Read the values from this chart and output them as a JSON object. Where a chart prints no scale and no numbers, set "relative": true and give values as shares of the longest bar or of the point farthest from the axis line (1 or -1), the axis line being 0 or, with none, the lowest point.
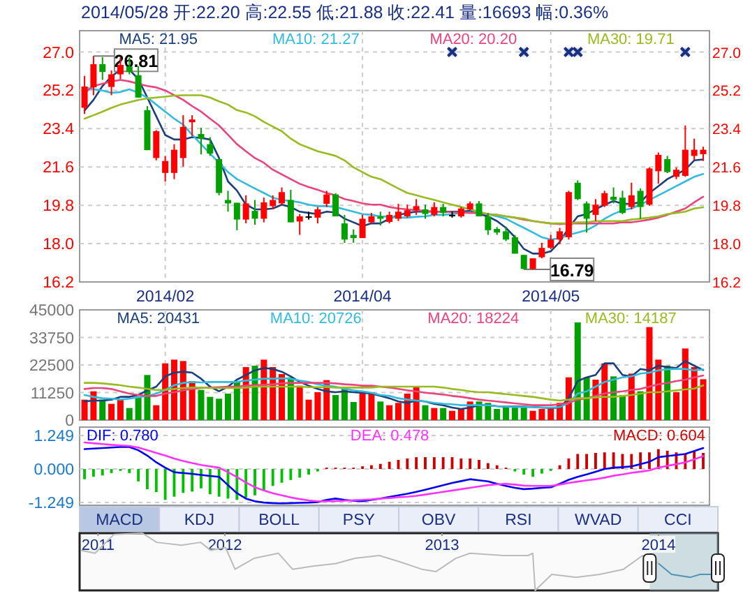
{
  "chart_data": [
    {
      "type": "candlestick",
      "title": "2014/05/28 开:22.20 高:22.55 低:21.88 收:22.41 量:16693 幅:0.36%",
      "categories": [
        null,
        null,
        null,
        null,
        null,
        null,
        null,
        null,
        null,
        "2014/02",
        null,
        null,
        null,
        null,
        null,
        null,
        null,
        null,
        null,
        null,
        null,
        null,
        null,
        null,
        null,
        null,
        null,
        null,
        null,
        null,
        null,
        "2014/04",
        null,
        null,
        null,
        null,
        null,
        null,
        null,
        null,
        null,
        null,
        null,
        null,
        null,
        null,
        null,
        null,
        null,
        null,
        null,
        null,
        "2014/05",
        null,
        null,
        null,
        null,
        null,
        null,
        null,
        null,
        null,
        null,
        null,
        null,
        null,
        null,
        null,
        null,
        null
      ],
      "ohlc": [
        [
          24.38,
          25.88,
          24.09,
          25.38
        ],
        [
          25.34,
          26.81,
          24.97,
          26.43
        ],
        [
          26.43,
          26.76,
          25.69,
          26.06
        ],
        [
          25.36,
          26.13,
          24.97,
          25.95
        ],
        [
          25.95,
          26.72,
          25.73,
          26.39
        ],
        [
          26.32,
          26.74,
          25.95,
          26.06
        ],
        [
          25.91,
          26.34,
          24.86,
          24.86
        ],
        [
          24.27,
          24.46,
          22.39,
          22.39
        ],
        [
          22.02,
          23.33,
          21.91,
          23.28
        ],
        [
          21.32,
          22.12,
          20.92,
          21.88
        ],
        [
          21.32,
          22.67,
          21.03,
          22.41
        ],
        [
          22.02,
          24.03,
          21.62,
          23.48
        ],
        [
          23.7,
          24.03,
          23.06,
          23.83
        ],
        [
          23.15,
          23.44,
          22.19,
          22.93
        ],
        [
          22.67,
          23.0,
          22.12,
          22.23
        ],
        [
          21.97,
          21.97,
          20.27,
          20.38
        ],
        [
          20.05,
          20.48,
          19.5,
          19.89
        ],
        [
          19.92,
          19.92,
          18.63,
          19.13
        ],
        [
          19.13,
          20.27,
          18.95,
          19.89
        ],
        [
          19.54,
          20.05,
          18.89,
          19.17
        ],
        [
          19.17,
          20.16,
          19.0,
          19.94
        ],
        [
          19.76,
          20.27,
          19.61,
          20.05
        ],
        [
          19.89,
          20.64,
          19.83,
          20.42
        ],
        [
          20.05,
          20.53,
          19.0,
          19.0
        ],
        [
          19.04,
          19.39,
          18.41,
          19.28
        ],
        [
          19.28,
          19.5,
          19.13,
          19.28
        ],
        [
          19.22,
          19.72,
          18.95,
          19.61
        ],
        [
          19.87,
          20.48,
          19.72,
          20.31
        ],
        [
          20.31,
          20.37,
          19.28,
          19.28
        ],
        [
          18.95,
          19.35,
          18.04,
          18.19
        ],
        [
          18.41,
          18.67,
          18.04,
          18.26
        ],
        [
          18.26,
          19.35,
          18.26,
          19.17
        ],
        [
          19.0,
          19.44,
          18.95,
          19.28
        ],
        [
          19.28,
          19.5,
          18.85,
          19.17
        ],
        [
          19.02,
          19.5,
          18.95,
          19.35
        ],
        [
          19.17,
          19.87,
          19.06,
          19.5
        ],
        [
          19.28,
          19.83,
          19.22,
          19.57
        ],
        [
          19.57,
          20.09,
          19.35,
          19.76
        ],
        [
          19.61,
          19.83,
          19.17,
          19.39
        ],
        [
          19.35,
          19.94,
          19.28,
          19.72
        ],
        [
          19.72,
          19.87,
          19.28,
          19.44
        ],
        [
          19.35,
          19.5,
          19.22,
          19.35
        ],
        [
          19.28,
          19.72,
          19.22,
          19.65
        ],
        [
          19.61,
          19.98,
          19.57,
          19.89
        ],
        [
          19.89,
          20.0,
          19.28,
          19.28
        ],
        [
          19.28,
          19.44,
          18.41,
          18.63
        ],
        [
          18.69,
          18.78,
          18.41,
          18.52
        ],
        [
          18.58,
          18.78,
          18.12,
          18.19
        ],
        [
          18.3,
          18.41,
          17.53,
          17.53
        ],
        [
          17.47,
          17.47,
          16.79,
          16.81
        ],
        [
          16.81,
          17.31,
          16.8,
          17.31
        ],
        [
          17.36,
          18.04,
          17.31,
          17.8
        ],
        [
          17.8,
          18.41,
          17.75,
          18.19
        ],
        [
          18.19,
          18.74,
          17.97,
          18.58
        ],
        [
          18.3,
          20.48,
          18.19,
          20.42
        ],
        [
          20.86,
          20.97,
          20.05,
          20.09
        ],
        [
          19.89,
          19.98,
          18.52,
          19.17
        ],
        [
          19.35,
          20.09,
          19.06,
          19.83
        ],
        [
          19.78,
          20.48,
          19.72,
          20.37
        ],
        [
          20.2,
          20.64,
          19.89,
          20.05
        ],
        [
          20.16,
          20.48,
          19.39,
          19.44
        ],
        [
          19.72,
          20.86,
          19.61,
          20.27
        ],
        [
          20.48,
          20.59,
          19.17,
          19.72
        ],
        [
          19.83,
          21.58,
          19.78,
          21.53
        ],
        [
          21.4,
          22.28,
          20.81,
          22.17
        ],
        [
          21.97,
          22.12,
          21.31,
          21.36
        ],
        [
          21.14,
          21.58,
          21.03,
          21.47
        ],
        [
          21.18,
          23.55,
          21.14,
          22.41
        ],
        [
          22.12,
          22.93,
          21.91,
          22.41
        ],
        [
          22.2,
          22.55,
          21.88,
          22.41
        ]
      ],
      "colors": [
        "#ff0000",
        "#ff0000",
        "#00a000",
        "#ff0000",
        "#ff0000",
        "#00a000",
        "#00a000",
        "#00a000",
        "#ff0000",
        "#ff0000",
        "#ff0000",
        "#ff0000",
        "#ff0000",
        "#00a000",
        "#00a000",
        "#00a000",
        "#00a000",
        "#00a000",
        "#ff0000",
        "#00a000",
        "#ff0000",
        "#ff0000",
        "#ff0000",
        "#00a000",
        "#ff0000",
        "#000000",
        "#ff0000",
        "#ff0000",
        "#00a000",
        "#00a000",
        "#00a000",
        "#ff0000",
        "#ff0000",
        "#00a000",
        "#ff0000",
        "#ff0000",
        "#ff0000",
        "#ff0000",
        "#00a000",
        "#ff0000",
        "#00a000",
        "#000000",
        "#ff0000",
        "#ff0000",
        "#00a000",
        "#00a000",
        "#00a000",
        "#00a000",
        "#00a000",
        "#00a000",
        "#ff0000",
        "#ff0000",
        "#ff0000",
        "#ff0000",
        "#ff0000",
        "#00a000",
        "#00a000",
        "#ff0000",
        "#ff0000",
        "#00a000",
        "#00a000",
        "#ff0000",
        "#00a000",
        "#ff0000",
        "#ff0000",
        "#00a000",
        "#ff0000",
        "#ff0000",
        "#ff0000",
        "#ff0000"
      ],
      "series": [
        {
          "type": "line",
          "name": "MA5: 21.95",
          "color": "#1a3f7a",
          "values": [
            24.25,
            24.75,
            25.4,
            25.85,
            26.17,
            26.17,
            25.73,
            24.86,
            23.98,
            23.1,
            22.89,
            22.89,
            23.0,
            22.96,
            22.89,
            22.02,
            20.92,
            20.49,
            19.83,
            19.61,
            19.61,
            19.65,
            19.83,
            19.72,
            19.5,
            19.44,
            19.39,
            19.5,
            19.46,
            19.17,
            19.0,
            18.82,
            18.95,
            18.95,
            19.17,
            19.35,
            19.44,
            19.5,
            19.5,
            19.5,
            19.5,
            19.5,
            19.5,
            19.54,
            19.39,
            19.28,
            19.06,
            18.74,
            18.3,
            17.75,
            17.53,
            17.53,
            17.64,
            18.08,
            18.74,
            19.28,
            19.39,
            19.61,
            19.83,
            20.0,
            19.87,
            19.87,
            19.94,
            20.38,
            20.7,
            21.03,
            21.25,
            21.47,
            21.91,
            21.95
          ]
        },
        {
          "type": "line",
          "name": "MA10: 21.27",
          "color": "#33bbdd",
          "values": [
            25.34,
            25.25,
            25.19,
            25.08,
            25.12,
            25.25,
            25.08,
            24.86,
            24.53,
            24.2,
            23.87,
            23.59,
            23.11,
            22.67,
            22.23,
            21.8,
            21.36,
            21.03,
            20.81,
            20.59,
            20.38,
            20.16,
            20.05,
            20.0,
            19.94,
            19.83,
            19.76,
            19.76,
            19.72,
            19.61,
            19.5,
            19.39,
            19.35,
            19.28,
            19.26,
            19.22,
            19.22,
            19.26,
            19.28,
            19.35,
            19.35,
            19.39,
            19.44,
            19.46,
            19.44,
            19.39,
            19.28,
            19.17,
            18.95,
            18.74,
            18.52,
            18.3,
            18.19,
            18.26,
            18.41,
            18.52,
            18.63,
            18.85,
            19.17,
            19.39,
            19.57,
            19.65,
            19.83,
            20.05,
            20.27,
            20.48,
            20.7,
            20.92,
            21.14,
            21.27
          ]
        },
        {
          "type": "line",
          "name": "MA20: 20.20",
          "color": "#e8457a",
          "values": [
            25.08,
            25.4,
            25.51,
            25.62,
            25.69,
            25.62,
            25.51,
            25.4,
            25.34,
            25.19,
            24.97,
            24.75,
            24.46,
            24.2,
            23.87,
            23.55,
            23.11,
            22.67,
            22.34,
            22.02,
            21.8,
            21.47,
            21.25,
            21.03,
            20.81,
            20.66,
            20.53,
            20.38,
            20.27,
            20.09,
            20.0,
            19.89,
            19.83,
            19.83,
            19.72,
            19.65,
            19.61,
            19.57,
            19.54,
            19.5,
            19.5,
            19.48,
            19.46,
            19.44,
            19.44,
            19.39,
            19.35,
            19.28,
            19.22,
            19.13,
            19.06,
            19.0,
            18.95,
            18.91,
            18.95,
            18.95,
            18.95,
            18.95,
            18.95,
            18.95,
            19.0,
            19.0,
            19.06,
            19.13,
            19.22,
            19.35,
            19.5,
            19.65,
            19.94,
            20.2
          ]
        },
        {
          "type": "line",
          "name": "MA30: 19.71",
          "color": "#99bb22",
          "values": [
            23.87,
            24.03,
            24.2,
            24.38,
            24.53,
            24.64,
            24.75,
            24.82,
            24.86,
            24.9,
            24.95,
            24.97,
            24.97,
            24.97,
            24.86,
            24.68,
            24.53,
            24.27,
            24.16,
            23.98,
            23.72,
            23.5,
            23.28,
            22.93,
            22.67,
            22.5,
            22.34,
            22.23,
            22.12,
            21.91,
            21.58,
            21.36,
            21.14,
            21.03,
            20.81,
            20.59,
            20.38,
            20.27,
            20.16,
            20.05,
            19.94,
            19.83,
            19.72,
            19.61,
            19.5,
            19.39,
            19.35,
            19.28,
            19.22,
            19.17,
            19.06,
            19.0,
            18.95,
            18.95,
            18.95,
            19.0,
            19.0,
            19.06,
            19.06,
            19.06,
            19.06,
            19.13,
            19.17,
            19.22,
            19.28,
            19.39,
            19.44,
            19.5,
            19.65,
            19.71
          ]
        },
        {
          "type": "scatter",
          "marker": "cross",
          "color": "#1a2f80",
          "values": [
            null,
            null,
            null,
            null,
            null,
            null,
            null,
            null,
            null,
            null,
            null,
            null,
            null,
            null,
            null,
            null,
            null,
            null,
            null,
            null,
            null,
            null,
            null,
            null,
            null,
            null,
            null,
            null,
            null,
            null,
            null,
            null,
            null,
            null,
            null,
            null,
            null,
            null,
            null,
            null,
            null,
            27.0,
            null,
            null,
            null,
            null,
            null,
            null,
            null,
            27.0,
            null,
            null,
            null,
            null,
            27.0,
            27.0,
            null,
            null,
            null,
            null,
            null,
            null,
            null,
            null,
            null,
            null,
            null,
            27.0,
            null,
            null
          ]
        }
      ],
      "ylim": [
        16.2,
        28.0
      ],
      "yticks": [
        {
          "value": 16.2,
          "label": "16.2"
        },
        {
          "value": 18.0,
          "label": "18.0"
        },
        {
          "value": 19.8,
          "label": "19.8"
        },
        {
          "value": 21.6,
          "label": "21.6"
        },
        {
          "value": 23.4,
          "label": "23.4"
        },
        {
          "value": 25.2,
          "label": "25.2"
        },
        {
          "value": 27.0,
          "label": "27.0"
        }
      ],
      "y2lim": [
        16.2,
        28.0
      ],
      "y2ticks": [
        {
          "value": 16.2,
          "label": "16.2"
        },
        {
          "value": 18.0,
          "label": "18.0"
        },
        {
          "value": 19.8,
          "label": "19.8"
        },
        {
          "value": 21.6,
          "label": "21.6"
        },
        {
          "value": 23.4,
          "label": "23.4"
        },
        {
          "value": 25.2,
          "label": "25.2"
        },
        {
          "value": 27.0,
          "label": "27.0"
        }
      ],
      "grid": true,
      "legend": "top",
      "annotations": [
        {
          "text": "26.81",
          "y": 26.81
        },
        {
          "text": "16.79",
          "y": 16.79
        }
      ]
    },
    {
      "type": "bar",
      "categories": [
        null,
        null,
        null,
        null,
        null,
        null,
        null,
        null,
        null,
        "2014/02",
        null,
        null,
        null,
        null,
        null,
        null,
        null,
        null,
        null,
        null,
        null,
        null,
        null,
        null,
        null,
        null,
        null,
        null,
        null,
        null,
        null,
        "2014/04",
        null,
        null,
        null,
        null,
        null,
        null,
        null,
        null,
        null,
        null,
        null,
        null,
        null,
        null,
        null,
        null,
        null,
        null,
        null,
        null,
        "2014/05",
        null,
        null,
        null,
        null,
        null,
        null,
        null,
        null,
        null,
        null,
        null,
        null,
        null,
        null,
        null,
        null,
        null
      ],
      "series": [
        {
          "type": "bar",
          "values": [
            8355,
            11770,
            8355,
            6650,
            8355,
            4940,
            9500,
            18420,
            6080,
            23170,
            24690,
            24120,
            15950,
            12340,
            9500,
            8740,
            10820,
            15950,
            21650,
            22220,
            24690,
            21650,
            18800,
            17470,
            14050,
            8355,
            11390,
            16330,
            10250,
            13670,
            7400,
            11390,
            11390,
            7600,
            6080,
            7030,
            10820,
            13670,
            6080,
            4940,
            4940,
            3800,
            4560,
            7600,
            7600,
            7030,
            4560,
            5130,
            5130,
            5130,
            3800,
            4560,
            4560,
            7030,
            17470,
            39880,
            17470,
            16520,
            23170,
            17850,
            10250,
            18990,
            11770,
            37980,
            24690,
            22220,
            11390,
            29240,
            21650,
            16693
          ],
          "colors": [
            "#ff0000",
            "#ff0000",
            "#00a000",
            "#ff0000",
            "#ff0000",
            "#00a000",
            "#00a000",
            "#00a000",
            "#ff0000",
            "#ff0000",
            "#ff0000",
            "#ff0000",
            "#ff0000",
            "#00a000",
            "#00a000",
            "#00a000",
            "#00a000",
            "#00a000",
            "#ff0000",
            "#00a000",
            "#ff0000",
            "#ff0000",
            "#ff0000",
            "#00a000",
            "#ff0000",
            "#ff0000",
            "#ff0000",
            "#ff0000",
            "#00a000",
            "#00a000",
            "#00a000",
            "#ff0000",
            "#ff0000",
            "#00a000",
            "#ff0000",
            "#ff0000",
            "#ff0000",
            "#ff0000",
            "#00a000",
            "#ff0000",
            "#00a000",
            "#ff0000",
            "#ff0000",
            "#ff0000",
            "#00a000",
            "#00a000",
            "#00a000",
            "#00a000",
            "#00a000",
            "#00a000",
            "#ff0000",
            "#ff0000",
            "#ff0000",
            "#ff0000",
            "#ff0000",
            "#00a000",
            "#00a000",
            "#ff0000",
            "#ff0000",
            "#00a000",
            "#00a000",
            "#ff0000",
            "#00a000",
            "#ff0000",
            "#ff0000",
            "#00a000",
            "#ff0000",
            "#ff0000",
            "#ff0000",
            "#ff0000"
          ]
        },
        {
          "type": "line",
          "name": "MA5: 20431",
          "color": "#1a3f7a",
          "values": [
            7600,
            7980,
            7980,
            8360,
            9500,
            9500,
            10250,
            12150,
            13670,
            17850,
            19370,
            19750,
            19370,
            16900,
            13670,
            11770,
            13670,
            16520,
            18420,
            20320,
            21270,
            20890,
            19750,
            17850,
            15570,
            14050,
            12720,
            11770,
            11390,
            11770,
            11390,
            11200,
            10820,
            9870,
            8930,
            7600,
            7030,
            7980,
            7600,
            6650,
            6080,
            5130,
            4560,
            5130,
            6080,
            6080,
            5700,
            5510,
            5510,
            5510,
            5320,
            5130,
            4940,
            5130,
            8930,
            15950,
            17470,
            18420,
            23170,
            23170,
            18420,
            17850,
            20890,
            20320,
            22220,
            21650,
            21270,
            24120,
            22220,
            20431
          ]
        },
        {
          "type": "line",
          "name": "MA10: 20726",
          "color": "#33bbdd",
          "values": [
            10250,
            9500,
            8930,
            8740,
            8360,
            8740,
            9300,
            9870,
            10820,
            12340,
            14240,
            15190,
            15570,
            15380,
            15570,
            15570,
            15570,
            15570,
            16140,
            16520,
            16900,
            16900,
            17090,
            16900,
            16140,
            15570,
            14620,
            14050,
            13670,
            12720,
            12150,
            11770,
            11200,
            10250,
            9870,
            8930,
            8360,
            7980,
            7600,
            7030,
            6650,
            6460,
            6080,
            6080,
            6080,
            6080,
            5700,
            5510,
            5320,
            5320,
            5320,
            5130,
            5130,
            5320,
            7030,
            10820,
            11770,
            13670,
            15570,
            16520,
            17470,
            17850,
            18990,
            19370,
            20320,
            20700,
            20890,
            20890,
            20320,
            20726
          ]
        },
        {
          "type": "line",
          "name": "MA20: 18224",
          "color": "#e8457a",
          "values": [
            12720,
            13100,
            13100,
            12720,
            11770,
            10820,
            10250,
            9870,
            9870,
            10820,
            11390,
            12150,
            12720,
            13100,
            13290,
            13480,
            13670,
            13670,
            14050,
            14240,
            14430,
            14620,
            15000,
            15190,
            15190,
            15190,
            15190,
            15190,
            15000,
            14620,
            14430,
            14050,
            14050,
            13670,
            13290,
            12720,
            12150,
            11770,
            11200,
            10820,
            10440,
            9870,
            9500,
            8930,
            8360,
            7980,
            7600,
            7220,
            6840,
            6460,
            6080,
            6080,
            6080,
            6460,
            7030,
            8360,
            8930,
            9870,
            10820,
            11390,
            11770,
            12340,
            12720,
            13670,
            14620,
            15190,
            15950,
            16520,
            17470,
            18224
          ]
        },
        {
          "type": "line",
          "name": "MA30: 14187",
          "color": "#99bb22",
          "values": [
            15190,
            15190,
            15000,
            14620,
            14240,
            13670,
            13290,
            12720,
            12340,
            12340,
            12720,
            13100,
            13290,
            13290,
            13100,
            13100,
            13100,
            13100,
            13290,
            13670,
            13670,
            13670,
            13670,
            13670,
            13670,
            13480,
            13480,
            13480,
            13290,
            13290,
            13290,
            13290,
            13290,
            13670,
            13670,
            13670,
            13670,
            13670,
            13670,
            13670,
            13290,
            12720,
            12340,
            11770,
            11390,
            11390,
            11010,
            10630,
            10250,
            9870,
            9500,
            8930,
            8360,
            7980,
            8360,
            8930,
            8930,
            9300,
            9500,
            9500,
            9870,
            10250,
            10820,
            11390,
            11390,
            11770,
            12150,
            12530,
            12910,
            14187
          ]
        }
      ],
      "ylim": [
        0,
        45000
      ],
      "yticks": [
        0,
        11250,
        22500,
        33750,
        45000
      ],
      "grid": true,
      "legend": "top",
      "tick_labels": "y"
    },
    {
      "type": "bar",
      "categories": [
        null,
        null,
        null,
        null,
        null,
        null,
        null,
        null,
        null,
        null,
        null,
        null,
        null,
        null,
        null,
        null,
        null,
        null,
        null,
        null,
        null,
        null,
        null,
        null,
        null,
        null,
        null,
        null,
        null,
        null,
        null,
        null,
        null,
        null,
        null,
        null,
        null,
        null,
        null,
        null,
        null,
        null,
        null,
        null,
        null,
        null,
        null,
        null,
        null,
        null,
        null,
        null,
        null,
        null,
        null,
        null,
        null,
        null,
        null,
        null,
        null,
        null,
        null,
        null,
        null,
        null,
        null,
        null,
        null,
        null
      ],
      "series": [
        {
          "type": "line",
          "name": "DIF: 0.780",
          "color": "#0000ee",
          "values": [
            0.74,
            0.76,
            0.78,
            0.8,
            0.82,
            0.82,
            0.7,
            0.5,
            0.25,
            0.05,
            -0.12,
            -0.15,
            -0.18,
            -0.22,
            -0.26,
            -0.29,
            -0.6,
            -0.9,
            -1.1,
            -1.2,
            -1.25,
            -1.27,
            -1.28,
            -1.27,
            -1.26,
            -1.25,
            -1.23,
            -1.15,
            -1.1,
            -1.15,
            -1.18,
            -1.2,
            -1.15,
            -1.1,
            -1.04,
            -0.98,
            -0.92,
            -0.85,
            -0.77,
            -0.69,
            -0.6,
            -0.52,
            -0.45,
            -0.38,
            -0.42,
            -0.46,
            -0.55,
            -0.63,
            -0.7,
            -0.75,
            -0.73,
            -0.7,
            -0.68,
            -0.55,
            -0.4,
            -0.29,
            -0.2,
            -0.1,
            0.0,
            0.05,
            0.07,
            0.1,
            0.18,
            0.27,
            0.44,
            0.48,
            0.52,
            0.56,
            0.67,
            0.78
          ]
        },
        {
          "type": "line",
          "name": "DEA: 0.478",
          "color": "#ff33ff",
          "values": [
            0.99,
            0.96,
            0.93,
            0.9,
            0.88,
            0.86,
            0.8,
            0.7,
            0.6,
            0.5,
            0.39,
            0.3,
            0.22,
            0.15,
            0.1,
            0.05,
            -0.12,
            -0.3,
            -0.5,
            -0.68,
            -0.8,
            -0.9,
            -0.98,
            -1.06,
            -1.12,
            -1.17,
            -1.2,
            -1.2,
            -1.19,
            -1.18,
            -1.16,
            -1.15,
            -1.13,
            -1.1,
            -1.08,
            -1.05,
            -1.03,
            -1.0,
            -0.95,
            -0.9,
            -0.85,
            -0.8,
            -0.75,
            -0.7,
            -0.65,
            -0.6,
            -0.57,
            -0.55,
            -0.58,
            -0.62,
            -0.63,
            -0.63,
            -0.63,
            -0.58,
            -0.52,
            -0.47,
            -0.42,
            -0.38,
            -0.32,
            -0.25,
            -0.2,
            -0.14,
            -0.1,
            -0.05,
            0.05,
            0.12,
            0.18,
            0.25,
            0.36,
            0.48
          ]
        },
        {
          "type": "bar",
          "name": "MACD: 0.604",
          "color": "#cc0000",
          "values": [
            -0.38,
            -0.29,
            -0.24,
            -0.15,
            -0.07,
            -0.15,
            -0.46,
            -0.75,
            -0.86,
            -1.15,
            -1.03,
            -0.89,
            -0.84,
            -0.72,
            -0.94,
            -1.03,
            -1.1,
            -1.15,
            -1.06,
            -0.98,
            -0.81,
            -0.63,
            -0.51,
            -0.41,
            -0.32,
            -0.21,
            -0.09,
            0.05,
            0.05,
            0.05,
            0.05,
            0.1,
            0.14,
            0.19,
            0.27,
            0.34,
            0.39,
            0.44,
            0.44,
            0.44,
            0.44,
            0.44,
            0.39,
            0.39,
            0.34,
            0.22,
            0.14,
            0.05,
            -0.09,
            -0.21,
            -0.29,
            -0.17,
            -0.07,
            0.14,
            0.39,
            0.56,
            0.56,
            0.6,
            0.62,
            0.62,
            0.56,
            0.56,
            0.62,
            0.62,
            0.74,
            0.68,
            0.62,
            0.56,
            0.65,
            0.6
          ],
          "colors": [
            "#00c000",
            "#00c000",
            "#00c000",
            "#00c000",
            "#00c000",
            "#00c000",
            "#00c000",
            "#00c000",
            "#00c000",
            "#00c000",
            "#00c000",
            "#00c000",
            "#00c000",
            "#00c000",
            "#00c000",
            "#00c000",
            "#00c000",
            "#00c000",
            "#00c000",
            "#00c000",
            "#00c000",
            "#00c000",
            "#00c000",
            "#00c000",
            "#00c000",
            "#00c000",
            "#00c000",
            "#cc0000",
            "#cc0000",
            "#cc0000",
            "#cc0000",
            "#cc0000",
            "#cc0000",
            "#cc0000",
            "#cc0000",
            "#cc0000",
            "#cc0000",
            "#cc0000",
            "#cc0000",
            "#cc0000",
            "#cc0000",
            "#cc0000",
            "#cc0000",
            "#cc0000",
            "#cc0000",
            "#cc0000",
            "#cc0000",
            "#cc0000",
            "#00c000",
            "#00c000",
            "#00c000",
            "#00c000",
            "#00c000",
            "#cc0000",
            "#cc0000",
            "#cc0000",
            "#cc0000",
            "#cc0000",
            "#cc0000",
            "#cc0000",
            "#cc0000",
            "#cc0000",
            "#cc0000",
            "#cc0000",
            "#cc0000",
            "#cc0000",
            "#cc0000",
            "#cc0000",
            "#cc0000",
            "#cc0000"
          ]
        }
      ],
      "ylim": [
        -1.35,
        1.56
      ],
      "yticks": [
        {
          "value": -1.249,
          "label": "-1.249"
        },
        {
          "value": 0,
          "label": "0.000"
        },
        {
          "value": 1.249,
          "label": "1.249"
        }
      ],
      "grid": "y",
      "legend": "top",
      "tick_labels": "y"
    },
    {
      "type": "other",
      "annotations": [
        "MACD",
        "KDJ",
        "BOLL",
        "PSY",
        "OBV",
        "RSI",
        "WVAD",
        "CCI"
      ]
    },
    {
      "type": "line",
      "relative": true,
      "tick_labels": "x",
      "xlim": [
        "2011-05-01",
        "2014-04-11"
      ],
      "xticks": [
        {
          "value": "2011-06-01",
          "label": "2011"
        },
        {
          "value": "2012-01-01",
          "label": "2012"
        },
        {
          "value": "2013-01-01",
          "label": "2013"
        },
        {
          "value": "2014-01-01",
          "label": "2014"
        }
      ],
      "series": [
        {
          "color": "#bbbbbb",
          "x": [
            "2011-05-03",
            "2011-05-27",
            "2011-06-28",
            "2011-08-15",
            "2011-09-08",
            "2011-10-19",
            "2011-11-21",
            "2011-12-08",
            "2012-01-02",
            "2012-01-18",
            "2012-02-19",
            "2012-03-31",
            "2012-04-24",
            "2012-05-26",
            "2012-07-06",
            "2012-08-07",
            "2012-09-17",
            "2012-10-19",
            "2012-11-28",
            "2012-12-22",
            "2013-01-24",
            "2013-02-17",
            "2013-04-15",
            "2013-05-26",
            "2013-06-03",
            "2013-06-07",
            "2013-07-05",
            "2013-08-15",
            "2013-09-24",
            "2013-11-03",
            "2013-12-05",
            "2014-01-01"
          ],
          "values": [
            0.7,
            0.65,
            0.98,
            1.0,
            0.84,
            0.79,
            0.84,
            0.7,
            0.75,
            0.37,
            0.56,
            0.65,
            0.37,
            0.42,
            0.47,
            0.56,
            0.61,
            0.51,
            0.37,
            0.33,
            0.56,
            0.65,
            0.61,
            0.61,
            0.65,
            0.0,
            0.28,
            0.23,
            0.28,
            0.37,
            0.61,
            0.47
          ]
        },
        {
          "color": "#4f93b5",
          "x": [
            "2014-01-01",
            "2014-01-23",
            "2014-02-24",
            "2014-03-12",
            "2014-04-05"
          ],
          "values": [
            0.47,
            0.28,
            0.23,
            0.28,
            0.28
          ]
        }
      ],
      "bands": [
        {
          "axis": "x",
          "from": "2013-12-17",
          "to": "2014-04-11",
          "color": "#a9c4cc"
        }
      ]
    }
  ]
}
